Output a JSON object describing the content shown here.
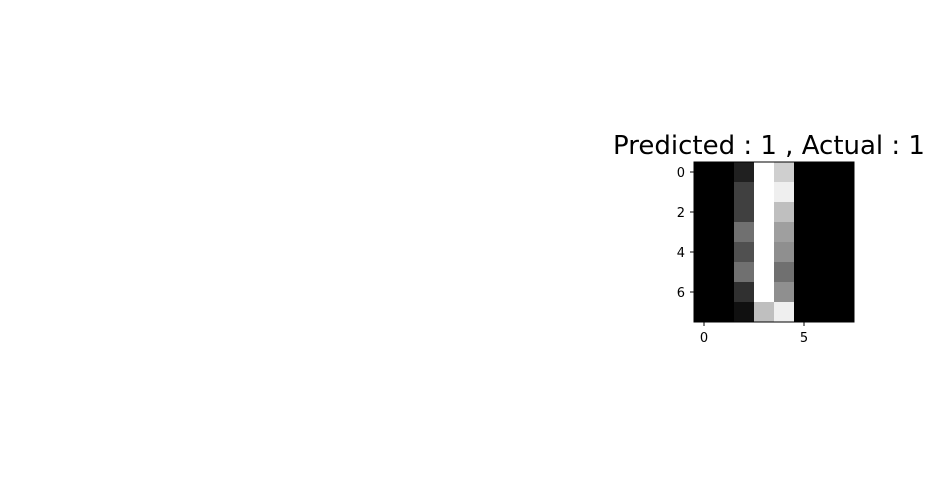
{
  "chart_data": {
    "type": "heatmap",
    "title": "Predicted : 1 , Actual : 1",
    "colormap": "gray",
    "value_range": [
      0,
      16
    ],
    "matrix": [
      [
        0,
        0,
        2,
        16,
        13,
        0,
        0,
        0
      ],
      [
        0,
        0,
        4,
        16,
        15,
        0,
        0,
        0
      ],
      [
        0,
        0,
        4,
        16,
        12,
        0,
        0,
        0
      ],
      [
        0,
        0,
        7,
        16,
        10,
        0,
        0,
        0
      ],
      [
        0,
        0,
        5,
        16,
        9,
        0,
        0,
        0
      ],
      [
        0,
        0,
        7,
        16,
        7,
        0,
        0,
        0
      ],
      [
        0,
        0,
        3,
        16,
        9,
        0,
        0,
        0
      ],
      [
        0,
        0,
        1,
        12,
        15,
        0,
        0,
        0
      ]
    ],
    "x_ticks": [
      0,
      5
    ],
    "y_ticks": [
      0,
      2,
      4,
      6
    ],
    "xlim": [
      -0.5,
      7.5
    ],
    "ylim": [
      7.5,
      -0.5
    ],
    "grid": false
  }
}
